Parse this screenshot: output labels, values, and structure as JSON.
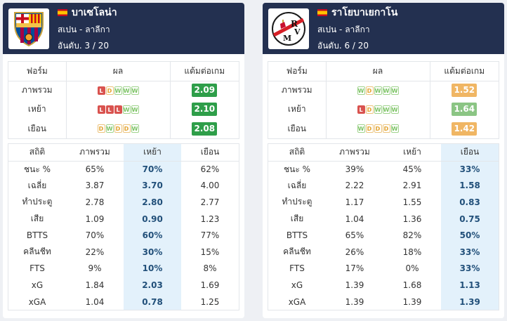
{
  "teams": [
    {
      "name": "บาเซโลน่า",
      "league": "สเปน - ลาลีกา",
      "rank": "อันดับ. 3 / 20",
      "logo_icon": "fc-barcelona-crest-icon",
      "form_headers": [
        "ฟอร์ม",
        "ผล",
        "แต้มต่อเกม"
      ],
      "form_rows": [
        {
          "label": "ภาพรวม",
          "results": [
            "L",
            "D",
            "W",
            "W",
            "W"
          ],
          "ppg": "2.09"
        },
        {
          "label": "เหย้า",
          "results": [
            "L",
            "L",
            "L",
            "W",
            "W"
          ],
          "ppg": "2.10"
        },
        {
          "label": "เยือน",
          "results": [
            "D",
            "W",
            "D",
            "D",
            "W"
          ],
          "ppg": "2.08"
        }
      ],
      "stats_headers": [
        "สถิติ",
        "ภาพรวม",
        "เหย้า",
        "เยือน"
      ],
      "stats_rows": [
        {
          "label": "ชนะ %",
          "overall": "65%",
          "home": "70%",
          "away": "62%"
        },
        {
          "label": "เฉลี่ย",
          "overall": "3.87",
          "home": "3.70",
          "away": "4.00"
        },
        {
          "label": "ทำประตู",
          "overall": "2.78",
          "home": "2.80",
          "away": "2.77"
        },
        {
          "label": "เสีย",
          "overall": "1.09",
          "home": "0.90",
          "away": "1.23"
        },
        {
          "label": "BTTS",
          "overall": "70%",
          "home": "60%",
          "away": "77%"
        },
        {
          "label": "คลีนชีท",
          "overall": "22%",
          "home": "30%",
          "away": "15%"
        },
        {
          "label": "FTS",
          "overall": "9%",
          "home": "10%",
          "away": "8%"
        },
        {
          "label": "xG",
          "overall": "1.84",
          "home": "2.03",
          "away": "1.69"
        },
        {
          "label": "xGA",
          "overall": "1.04",
          "home": "0.78",
          "away": "1.25"
        }
      ]
    },
    {
      "name": "ราโยบาเยกาโน",
      "league": "สเปน - ลาลีกา",
      "rank": "อันดับ. 6 / 20",
      "logo_icon": "rayo-vallecano-crest-icon",
      "form_headers": [
        "ฟอร์ม",
        "ผล",
        "แต้มต่อเกม"
      ],
      "form_rows": [
        {
          "label": "ภาพรวม",
          "results": [
            "W",
            "D",
            "W",
            "W",
            "W"
          ],
          "ppg": "1.52"
        },
        {
          "label": "เหย้า",
          "results": [
            "L",
            "D",
            "W",
            "W",
            "W"
          ],
          "ppg": "1.64"
        },
        {
          "label": "เยือน",
          "results": [
            "W",
            "D",
            "D",
            "D",
            "W"
          ],
          "ppg": "1.42"
        }
      ],
      "stats_headers": [
        "สถิติ",
        "ภาพรวม",
        "เหย้า",
        "เยือน"
      ],
      "stats_rows": [
        {
          "label": "ชนะ %",
          "overall": "39%",
          "home": "45%",
          "away": "33%"
        },
        {
          "label": "เฉลี่ย",
          "overall": "2.22",
          "home": "2.91",
          "away": "1.58"
        },
        {
          "label": "ทำประตู",
          "overall": "1.17",
          "home": "1.55",
          "away": "0.83"
        },
        {
          "label": "เสีย",
          "overall": "1.04",
          "home": "1.36",
          "away": "0.75"
        },
        {
          "label": "BTTS",
          "overall": "65%",
          "home": "82%",
          "away": "50%"
        },
        {
          "label": "คลีนชีท",
          "overall": "26%",
          "home": "18%",
          "away": "33%"
        },
        {
          "label": "FTS",
          "overall": "17%",
          "home": "0%",
          "away": "33%"
        },
        {
          "label": "xG",
          "overall": "1.39",
          "home": "1.68",
          "away": "1.13"
        },
        {
          "label": "xGA",
          "overall": "1.39",
          "home": "1.39",
          "away": "1.39"
        }
      ]
    }
  ],
  "colors": {
    "header_bg": "#233050",
    "highlight_col": "#e3f1fb",
    "ppg_green_dark": "#2e9e49",
    "ppg_green_light": "#8bc584",
    "ppg_orange": "#f0b664"
  }
}
